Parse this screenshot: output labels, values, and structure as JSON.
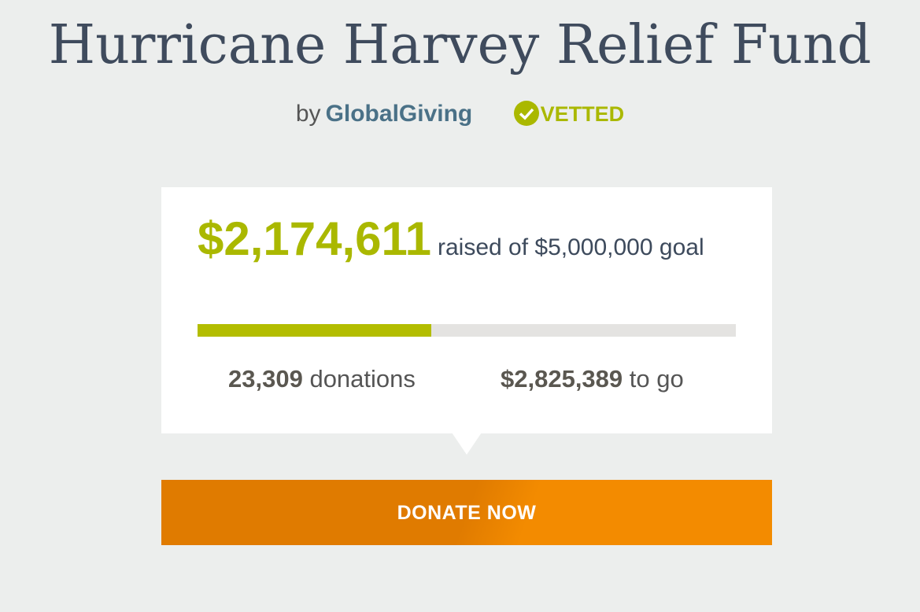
{
  "header": {
    "title": "Hurricane Harvey Relief Fund",
    "by": "by",
    "organization": "GlobalGiving",
    "badge": "VETTED"
  },
  "progress": {
    "raised": {
      "value": 2174611,
      "label": "$2,174,611"
    },
    "raised_text": "raised of",
    "goal": {
      "value": 5000000,
      "label": "$5,000,000"
    },
    "goal_text": "goal",
    "donations": "23,309",
    "donations_text": "donations",
    "remaining": "$2,825,389",
    "remaining_text": "to go"
  },
  "button": "DONATE NOW"
}
